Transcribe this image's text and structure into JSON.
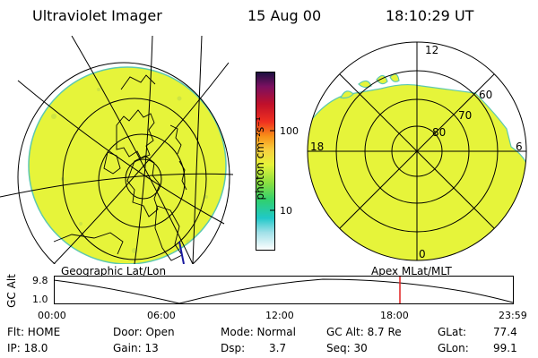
{
  "header": {
    "instrument": "Ultraviolet Imager",
    "date": "15 Aug 00",
    "time": "18:10:29 UT"
  },
  "left_panel": {
    "caption": "Geographic Lat/Lon"
  },
  "right_panel": {
    "caption": "Apex MLat/MLT",
    "mlt_labels": [
      "12",
      "18",
      "6",
      "0"
    ],
    "mlat_labels": [
      "60",
      "70",
      "80"
    ]
  },
  "colorbar": {
    "unit_label": "photon cm⁻²s⁻¹",
    "tick_labels": [
      "100",
      "10"
    ]
  },
  "altitude_plot": {
    "ylabel": "GC Alt",
    "y_ticks": [
      "9.8",
      "1.0"
    ],
    "x_ticks": [
      "00:00",
      "06:00",
      "12:00",
      "18:00",
      "23:59"
    ],
    "marker_time": "18:10"
  },
  "footer": {
    "flt": "Flt: HOME",
    "ip": "IP: 18.0",
    "door": "Door: Open",
    "gain": "Gain: 13",
    "mode": "Mode: Normal",
    "dsp_label": "Dsp:",
    "dsp_value": "3.7",
    "gc_alt": "GC Alt: 8.7 Re",
    "seq": "Seq: 30",
    "glat_label": "GLat:",
    "glat_value": "77.4",
    "glon_label": "GLon:",
    "glon_value": "99.1"
  },
  "colors": {
    "image_fill": "#e6f43a",
    "marker": "#e02020"
  }
}
